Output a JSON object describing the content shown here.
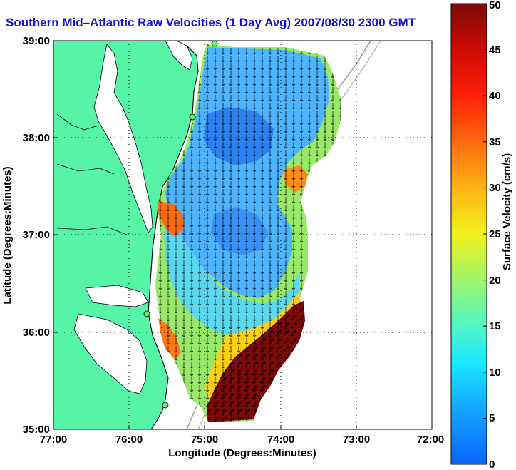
{
  "title": "Southern Mid–Atlantic Raw Velocities (1 Day Avg) 2007/08/30 2300 GMT",
  "xlabel": "Longitude (Degrees:Minutes)",
  "ylabel": "Latitude (Degrees:Minutes)",
  "x_ticks": [
    "77:00",
    "76:00",
    "75:00",
    "74:00",
    "73:00",
    "72:00"
  ],
  "y_ticks": [
    "39:00",
    "38:00",
    "37:00",
    "36:00",
    "35:00"
  ],
  "colorbar": {
    "label": "Surface Velocity (cm/s)",
    "ticks": [
      "0",
      "5",
      "10",
      "15",
      "20",
      "25",
      "30",
      "35",
      "40",
      "45",
      "50"
    ],
    "min": 0,
    "max": 50
  },
  "chart_data": {
    "type": "heatmap",
    "x_range_deg": [
      -77,
      -72
    ],
    "y_range_deg": [
      35,
      39
    ],
    "grid": true,
    "colors": {
      "land": "#55f4a6",
      "water": "#ffffff",
      "title": "#1414d8"
    },
    "legend_placement": "right"
  }
}
